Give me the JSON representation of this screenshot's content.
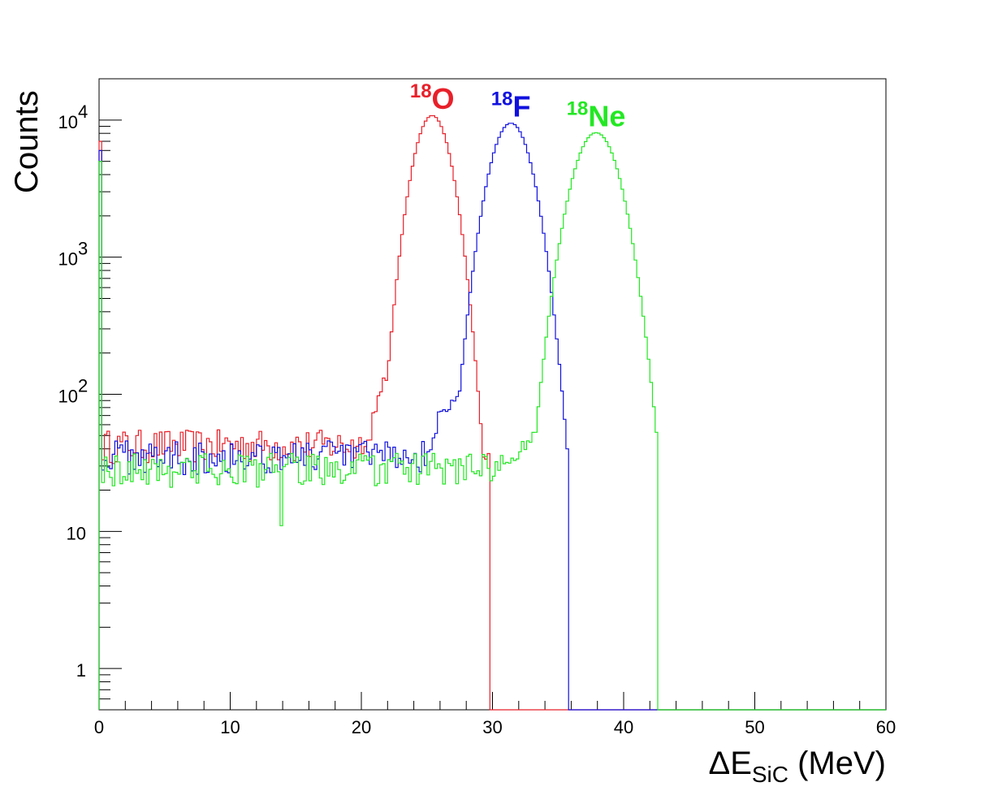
{
  "chart_data": {
    "type": "line",
    "style": "step-histogram",
    "xlabel": {
      "main": "ΔE",
      "sub": "SiC",
      "unit": " (MeV)"
    },
    "ylabel": "Counts",
    "xlim": [
      0,
      60
    ],
    "ylim": [
      0.5,
      20000
    ],
    "yscale": "log",
    "grid": false,
    "xticks": [
      0,
      10,
      20,
      30,
      40,
      50,
      60
    ],
    "yticks": [
      {
        "value": 1,
        "base": "1",
        "exp": ""
      },
      {
        "value": 10,
        "base": "10",
        "exp": ""
      },
      {
        "value": 100,
        "base": "10",
        "exp": "2"
      },
      {
        "value": 1000,
        "base": "10",
        "exp": "3"
      },
      {
        "value": 10000,
        "base": "10",
        "exp": "4"
      }
    ],
    "bin_width": 0.2,
    "series": [
      {
        "name": "18O",
        "label_mass": "18",
        "label_symbol": "O",
        "color": "#e8202a",
        "peak_x": 25.4,
        "peak_counts": 10800,
        "sigma": 1.15,
        "background_counts": 43,
        "tail": {
          "from": 20.0,
          "to": 24.0,
          "counts": [
            40,
            45,
            70,
            100,
            135,
            150,
            140,
            160,
            200,
            260
          ]
        },
        "min_x": 0.2,
        "max_x": 29.8,
        "pedestal_counts": 7000
      },
      {
        "name": "18F",
        "label_mass": "18",
        "label_symbol": "F",
        "color": "#1010e0",
        "peak_x": 31.4,
        "peak_counts": 9500,
        "sigma": 1.3,
        "background_counts": 36,
        "tail": {
          "from": 25.0,
          "to": 28.6,
          "counts": [
            40,
            50,
            70,
            78,
            72,
            88,
            95,
            92,
            100,
            130
          ]
        },
        "min_x": 0.2,
        "max_x": 35.8,
        "pedestal_counts": 6000
      },
      {
        "name": "18Ne",
        "label_mass": "18",
        "label_symbol": "Ne",
        "color": "#22e822",
        "peak_x": 37.9,
        "peak_counts": 8100,
        "sigma": 1.45,
        "background_counts": 29,
        "tail": {
          "from": 30.0,
          "to": 34.4,
          "counts": [
            24,
            26,
            30,
            33,
            36,
            42,
            46,
            50,
            55,
            52
          ]
        },
        "min_x": 0.2,
        "max_x": 42.6,
        "pedestal_counts": 5000,
        "dip": {
          "x": 14.0,
          "counts": 11
        }
      }
    ]
  }
}
